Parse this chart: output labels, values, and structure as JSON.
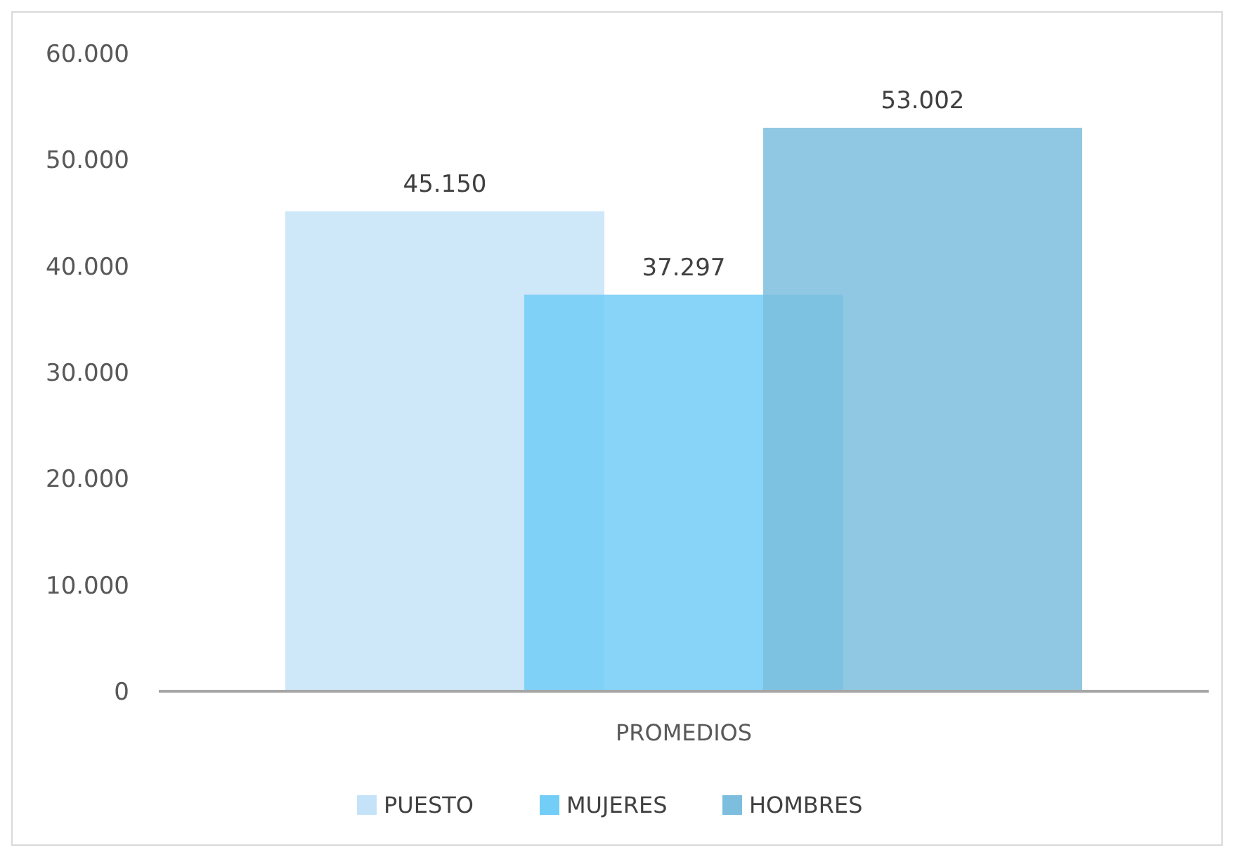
{
  "chart_data": {
    "type": "bar",
    "categories": [
      "PROMEDIOS"
    ],
    "series": [
      {
        "name": "PUESTO",
        "color": "#c5e3f8",
        "values": [
          45150
        ],
        "value_labels": [
          "45.150"
        ]
      },
      {
        "name": "MUJERES",
        "color": "#72cdf7",
        "values": [
          37297
        ],
        "value_labels": [
          "37.297"
        ]
      },
      {
        "name": "HOMBRES",
        "color": "#7dbede",
        "values": [
          53002
        ],
        "value_labels": [
          "53.002"
        ]
      }
    ],
    "ylim": [
      0,
      60000
    ],
    "yticks": [
      {
        "value": 0,
        "label": "0"
      },
      {
        "value": 10000,
        "label": "10.000"
      },
      {
        "value": 20000,
        "label": "20.000"
      },
      {
        "value": 30000,
        "label": "30.000"
      },
      {
        "value": 40000,
        "label": "40.000"
      },
      {
        "value": 50000,
        "label": "50.000"
      },
      {
        "value": 60000,
        "label": "60.000"
      }
    ],
    "legend": "bottom"
  }
}
